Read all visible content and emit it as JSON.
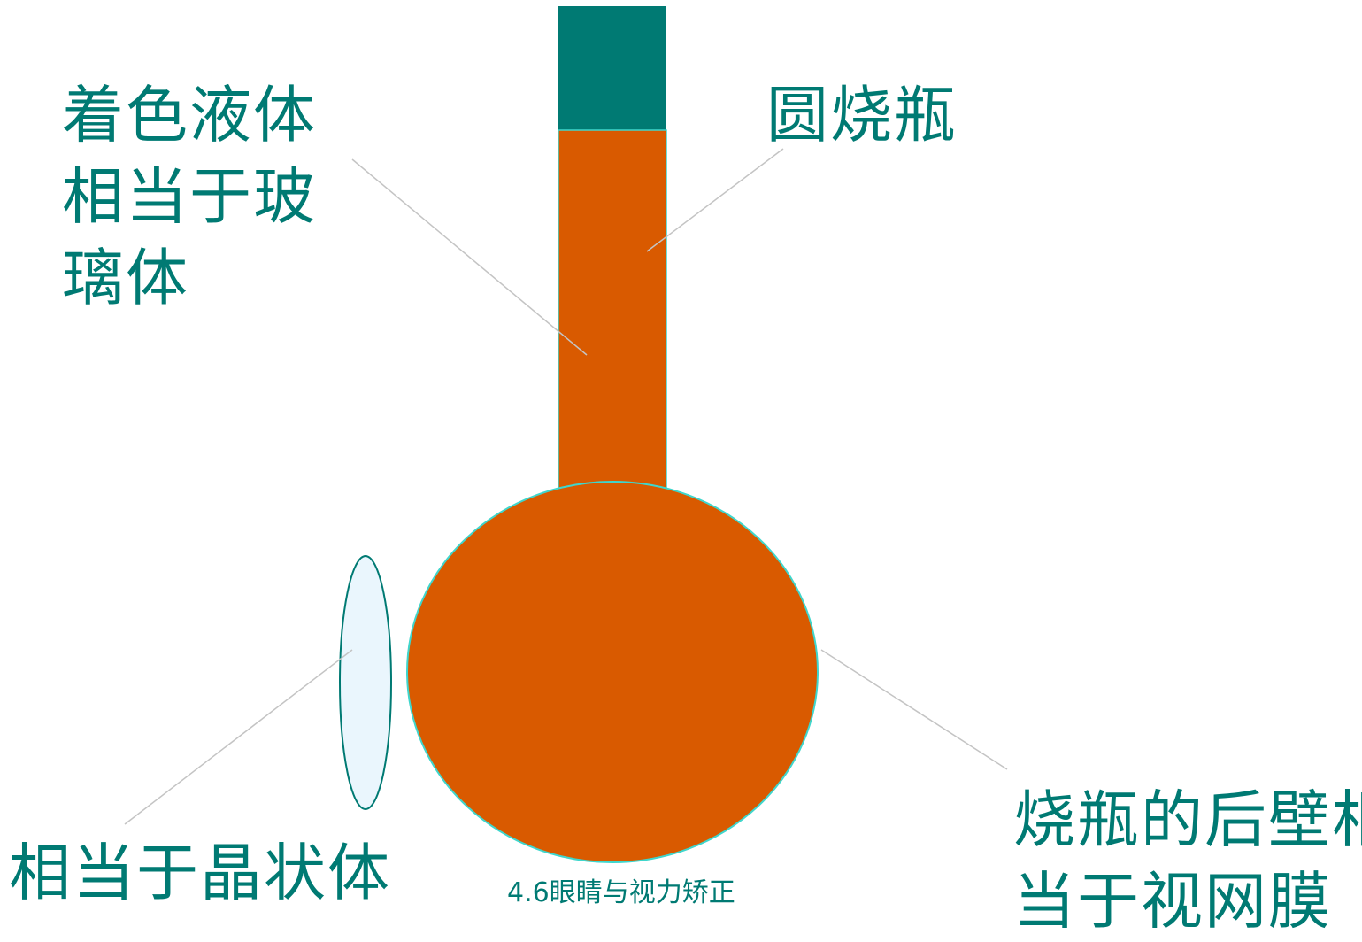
{
  "labels": {
    "colored_liquid": {
      "lines": [
        "着色液体",
        "相当于玻",
        "璃体"
      ]
    },
    "round_flask": "圆烧瓶",
    "lens": "相当于晶状体",
    "flask_back_wall": {
      "lines": [
        "烧瓶的后壁相",
        "当于视网膜"
      ]
    }
  },
  "footer": "4.6眼睛与视力矫正",
  "colors": {
    "stopper": "#007a73",
    "liquid": "#d95a00",
    "outline": "#3fd6cc",
    "lens_fill": "#eaf6fd",
    "lens_outline": "#007a73",
    "leader_line": "#c4c4c4",
    "text": "#007a73"
  }
}
